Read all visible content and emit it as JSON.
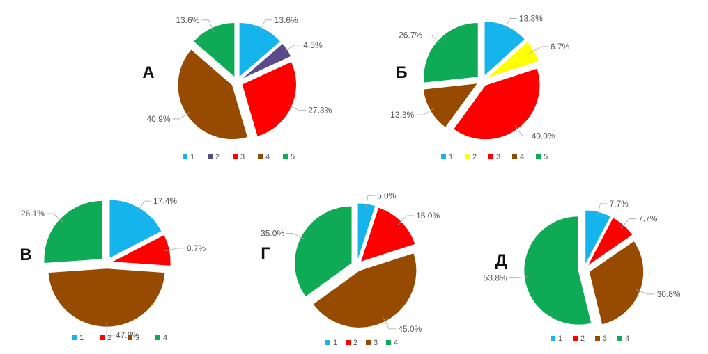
{
  "chart_data": [
    {
      "type": "pie",
      "title": "А",
      "categories": [
        "1",
        "2",
        "3",
        "4",
        "5"
      ],
      "values": [
        13.6,
        4.5,
        27.3,
        40.9,
        13.6
      ],
      "labels": [
        "13.6%",
        "4.5%",
        "27.3%",
        "40.9%",
        "13.6%"
      ],
      "colors": [
        "#15b4ec",
        "#5b4a8a",
        "#ff0000",
        "#964b00",
        "#0eaa55"
      ],
      "exploded": true,
      "legend": "bottom"
    },
    {
      "type": "pie",
      "title": "Б",
      "categories": [
        "1",
        "2",
        "3",
        "4",
        "5"
      ],
      "values": [
        13.3,
        6.7,
        40.0,
        13.3,
        26.7
      ],
      "labels": [
        "13.3%",
        "6.7%",
        "40.0%",
        "13.3%",
        "26.7%"
      ],
      "colors": [
        "#15b4ec",
        "#ffff00",
        "#ff0000",
        "#964b00",
        "#0eaa55"
      ],
      "exploded": true,
      "legend": "bottom"
    },
    {
      "type": "pie",
      "title": "В",
      "categories": [
        "1",
        "2",
        "3",
        "4"
      ],
      "values": [
        17.4,
        8.7,
        47.8,
        26.1
      ],
      "labels": [
        "17.4%",
        "8.7%",
        "47.8%",
        "26.1%"
      ],
      "colors": [
        "#15b4ec",
        "#ff0000",
        "#964b00",
        "#0eaa55"
      ],
      "exploded": true,
      "legend": "bottom"
    },
    {
      "type": "pie",
      "title": "Г",
      "categories": [
        "1",
        "2",
        "3",
        "4"
      ],
      "values": [
        5.0,
        15.0,
        45.0,
        35.0
      ],
      "labels": [
        "5.0%",
        "15.0%",
        "45.0%",
        "35.0%"
      ],
      "colors": [
        "#15b4ec",
        "#ff0000",
        "#964b00",
        "#0eaa55"
      ],
      "exploded": true,
      "legend": "bottom"
    },
    {
      "type": "pie",
      "title": "Д",
      "categories": [
        "1",
        "2",
        "3",
        "4"
      ],
      "values": [
        7.7,
        7.7,
        30.8,
        53.8
      ],
      "labels": [
        "7.7%",
        "7.7%",
        "30.8%",
        "53.8%"
      ],
      "colors": [
        "#15b4ec",
        "#ff0000",
        "#964b00",
        "#0eaa55"
      ],
      "exploded": true,
      "legend": "bottom"
    }
  ]
}
